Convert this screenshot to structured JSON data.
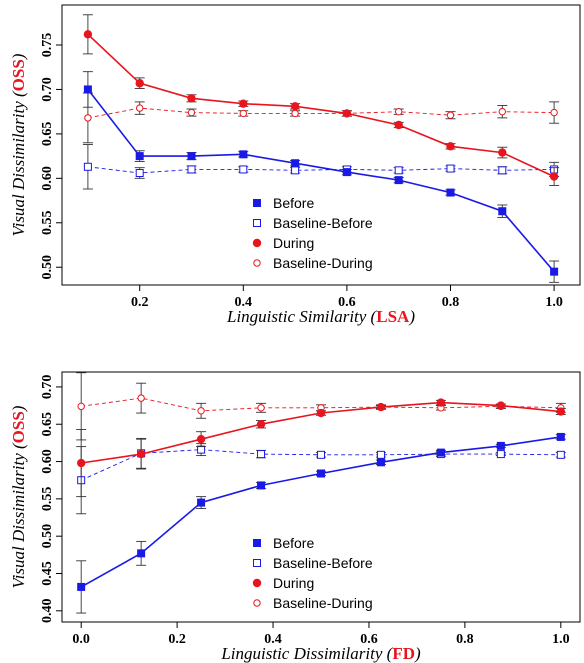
{
  "chart_data": [
    {
      "type": "line",
      "x": [
        0.1,
        0.2,
        0.3,
        0.4,
        0.5,
        0.6,
        0.7,
        0.8,
        0.9,
        1.0
      ],
      "xlim": [
        0.05,
        1.05
      ],
      "ylim": [
        0.48,
        0.795
      ],
      "xticks": [
        0.2,
        0.4,
        0.6,
        0.8,
        1.0
      ],
      "xtick_labels": [
        "0.2",
        "0.4",
        "0.6",
        "0.8",
        "1.0"
      ],
      "yticks": [
        0.5,
        0.55,
        0.6,
        0.65,
        0.7,
        0.75
      ],
      "ytick_labels": [
        "0.50",
        "0.55",
        "0.60",
        "0.65",
        "0.70",
        "0.75"
      ],
      "xlabel": "Linguistic Similarity",
      "xlabel_highlight": "LSA",
      "ylabel": "Visual Dissimilarity",
      "ylabel_highlight": "OSS",
      "legend_position": "bottom-center",
      "series": [
        {
          "name": "Before",
          "color": "#1a1ae6",
          "marker": "square-filled",
          "line": "solid",
          "values": [
            0.7,
            0.625,
            0.625,
            0.627,
            0.617,
            0.607,
            0.598,
            0.584,
            0.563,
            0.495
          ],
          "errors": [
            0.02,
            0.006,
            0.004,
            0.003,
            0.003,
            0.003,
            0.003,
            0.003,
            0.007,
            0.012
          ]
        },
        {
          "name": "Baseline-Before",
          "color": "#1a1ae6",
          "marker": "square-open",
          "line": "dashed",
          "values": [
            0.613,
            0.606,
            0.61,
            0.61,
            0.609,
            0.61,
            0.609,
            0.611,
            0.609,
            0.61
          ],
          "errors": [
            0.025,
            0.006,
            0.004,
            0.003,
            0.003,
            0.003,
            0.003,
            0.003,
            0.004,
            0.008
          ]
        },
        {
          "name": "During",
          "color": "#e8141e",
          "marker": "circle-filled",
          "line": "solid",
          "values": [
            0.762,
            0.707,
            0.69,
            0.684,
            0.681,
            0.673,
            0.66,
            0.636,
            0.629,
            0.602
          ],
          "errors": [
            0.022,
            0.006,
            0.004,
            0.003,
            0.003,
            0.003,
            0.003,
            0.003,
            0.006,
            0.01
          ]
        },
        {
          "name": "Baseline-During",
          "color": "#e8141e",
          "marker": "circle-open",
          "line": "dashed",
          "values": [
            0.668,
            0.679,
            0.674,
            0.673,
            0.673,
            0.673,
            0.675,
            0.671,
            0.675,
            0.674
          ],
          "errors": [
            0.028,
            0.007,
            0.004,
            0.003,
            0.003,
            0.003,
            0.003,
            0.004,
            0.007,
            0.012
          ]
        }
      ]
    },
    {
      "type": "line",
      "x": [
        0.0,
        0.125,
        0.25,
        0.375,
        0.5,
        0.625,
        0.75,
        0.875,
        1.0
      ],
      "xlim": [
        -0.04,
        1.04
      ],
      "ylim": [
        0.385,
        0.72
      ],
      "xticks": [
        0.0,
        0.2,
        0.4,
        0.6,
        0.8,
        1.0
      ],
      "xtick_labels": [
        "0.0",
        "0.2",
        "0.4",
        "0.6",
        "0.8",
        "1.0"
      ],
      "yticks": [
        0.4,
        0.45,
        0.5,
        0.55,
        0.6,
        0.65,
        0.7
      ],
      "ytick_labels": [
        "0.40",
        "0.45",
        "0.50",
        "0.55",
        "0.60",
        "0.65",
        "0.70"
      ],
      "xlabel": "Linguistic Dissimilarity",
      "xlabel_highlight": "FD",
      "ylabel": "Visual Dissimilarity",
      "ylabel_highlight": "OSS",
      "legend_position": "bottom-center",
      "series": [
        {
          "name": "Before",
          "color": "#1a1ae6",
          "marker": "square-filled",
          "line": "solid",
          "values": [
            0.432,
            0.477,
            0.545,
            0.568,
            0.584,
            0.599,
            0.612,
            0.621,
            0.633
          ],
          "errors": [
            0.035,
            0.016,
            0.008,
            0.004,
            0.003,
            0.003,
            0.003,
            0.002,
            0.003
          ]
        },
        {
          "name": "Baseline-Before",
          "color": "#1a1ae6",
          "marker": "square-open",
          "line": "dashed",
          "values": [
            0.575,
            0.611,
            0.616,
            0.61,
            0.609,
            0.609,
            0.61,
            0.61,
            0.609
          ],
          "errors": [
            0.045,
            0.02,
            0.008,
            0.005,
            0.003,
            0.003,
            0.003,
            0.002,
            0.003
          ]
        },
        {
          "name": "During",
          "color": "#e8141e",
          "marker": "circle-filled",
          "line": "solid",
          "values": [
            0.598,
            0.61,
            0.63,
            0.65,
            0.665,
            0.673,
            0.679,
            0.675,
            0.667
          ],
          "errors": [
            0.045,
            0.02,
            0.01,
            0.005,
            0.003,
            0.002,
            0.003,
            0.002,
            0.004
          ]
        },
        {
          "name": "Baseline-During",
          "color": "#e8141e",
          "marker": "circle-open",
          "line": "dashed",
          "values": [
            0.674,
            0.685,
            0.668,
            0.672,
            0.672,
            0.673,
            0.672,
            0.674,
            0.672
          ],
          "errors": [
            0.045,
            0.02,
            0.01,
            0.006,
            0.004,
            0.003,
            0.003,
            0.003,
            0.006
          ]
        }
      ]
    }
  ]
}
